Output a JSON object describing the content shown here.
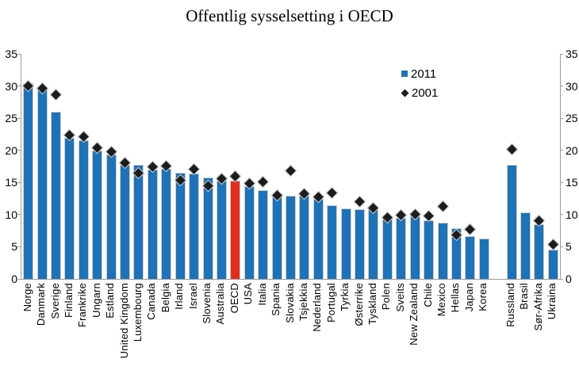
{
  "title": "Offentlig sysselsetting i OECD",
  "legend": {
    "items": [
      {
        "label": "2011",
        "marker": "square",
        "color": "#1e72b8"
      },
      {
        "label": "2001",
        "marker": "diamond",
        "color": "#1c1c1c"
      }
    ]
  },
  "chart_data": {
    "type": "bar",
    "title": "Offentlig sysselsetting i OECD",
    "xlabel": "",
    "ylabel": "",
    "ylim": [
      0,
      35
    ],
    "yticks": [
      0,
      5,
      10,
      15,
      20,
      25,
      30,
      35
    ],
    "grid": false,
    "dual_axis_labels": true,
    "legend_position": "inside-upper-right",
    "bar_color": "#1e72b8",
    "highlight_color": "#e02d1f",
    "marker_color": "#1c1c1c",
    "series": [
      {
        "name": "2011",
        "type": "bar"
      },
      {
        "name": "2001",
        "type": "diamond-marker"
      }
    ],
    "points": [
      {
        "label": "Norge",
        "group": "oecd",
        "v2011": 30.5,
        "v2001": 30.0
      },
      {
        "label": "Danmark",
        "group": "oecd",
        "v2011": 29.8,
        "v2001": 29.6
      },
      {
        "label": "Sverige",
        "group": "oecd",
        "v2011": 26.0,
        "v2001": 28.7
      },
      {
        "label": "Finland",
        "group": "oecd",
        "v2011": 21.9,
        "v2001": 22.4
      },
      {
        "label": "Frankrike",
        "group": "oecd",
        "v2011": 21.6,
        "v2001": 22.1
      },
      {
        "label": "Ungarn",
        "group": "oecd",
        "v2011": 20.0,
        "v2001": 20.4
      },
      {
        "label": "Estland",
        "group": "oecd",
        "v2011": 19.3,
        "v2001": 19.8
      },
      {
        "label": "United Kingdom",
        "group": "oecd",
        "v2011": 17.8,
        "v2001": 18.1
      },
      {
        "label": "Luxembourg",
        "group": "oecd",
        "v2011": 17.7,
        "v2001": 16.4
      },
      {
        "label": "Canada",
        "group": "oecd",
        "v2011": 17.0,
        "v2001": 17.4
      },
      {
        "label": "Belgia",
        "group": "oecd",
        "v2011": 17.1,
        "v2001": 17.6
      },
      {
        "label": "Irland",
        "group": "oecd",
        "v2011": 16.5,
        "v2001": 15.4
      },
      {
        "label": "Israel",
        "group": "oecd",
        "v2011": 16.4,
        "v2001": 17.1
      },
      {
        "label": "Slovenia",
        "group": "oecd",
        "v2011": 15.8,
        "v2001": 14.5
      },
      {
        "label": "Australia",
        "group": "oecd",
        "v2011": 15.3,
        "v2001": 15.6
      },
      {
        "label": "OECD",
        "group": "oecd",
        "v2011": 15.3,
        "v2001": 16.0,
        "highlight": true
      },
      {
        "label": "USA",
        "group": "oecd",
        "v2011": 14.4,
        "v2001": 14.8
      },
      {
        "label": "Italia",
        "group": "oecd",
        "v2011": 13.8,
        "v2001": 15.1
      },
      {
        "label": "Spania",
        "group": "oecd",
        "v2011": 13.0,
        "v2001": 13.0
      },
      {
        "label": "Slovakia",
        "group": "oecd",
        "v2011": 13.0,
        "v2001": 16.8
      },
      {
        "label": "Tsjekkia",
        "group": "oecd",
        "v2011": 13.2,
        "v2001": 13.2
      },
      {
        "label": "Nederland",
        "group": "oecd",
        "v2011": 12.5,
        "v2001": 12.7
      },
      {
        "label": "Portugal",
        "group": "oecd",
        "v2011": 11.5,
        "v2001": 13.4
      },
      {
        "label": "Tyrkia",
        "group": "oecd",
        "v2011": 11.0,
        "v2001": null
      },
      {
        "label": "Østerrike",
        "group": "oecd",
        "v2011": 10.8,
        "v2001": 12.0
      },
      {
        "label": "Tyskland",
        "group": "oecd",
        "v2011": 10.8,
        "v2001": 11.0
      },
      {
        "label": "Polen",
        "group": "oecd",
        "v2011": 9.4,
        "v2001": 9.5
      },
      {
        "label": "Sveits",
        "group": "oecd",
        "v2011": 9.5,
        "v2001": 9.9
      },
      {
        "label": "New Zealand",
        "group": "oecd",
        "v2011": 9.7,
        "v2001": 10.1
      },
      {
        "label": "Chile",
        "group": "oecd",
        "v2011": 9.1,
        "v2001": 9.8
      },
      {
        "label": "Mexico",
        "group": "oecd",
        "v2011": 8.8,
        "v2001": 11.3
      },
      {
        "label": "Hellas",
        "group": "oecd",
        "v2011": 7.9,
        "v2001": 6.8
      },
      {
        "label": "Japan",
        "group": "oecd",
        "v2011": 6.7,
        "v2001": 7.7
      },
      {
        "label": "Korea",
        "group": "oecd",
        "v2011": 6.3,
        "v2001": null
      },
      {
        "label": "Russland",
        "group": "non-oecd",
        "v2011": 17.7,
        "v2001": 20.2
      },
      {
        "label": "Brasil",
        "group": "non-oecd",
        "v2011": 10.4,
        "v2001": null
      },
      {
        "label": "Sør-Afrika",
        "group": "non-oecd",
        "v2011": 8.5,
        "v2001": 9.0
      },
      {
        "label": "Ukraina",
        "group": "non-oecd",
        "v2011": 4.6,
        "v2001": 5.3
      }
    ]
  }
}
